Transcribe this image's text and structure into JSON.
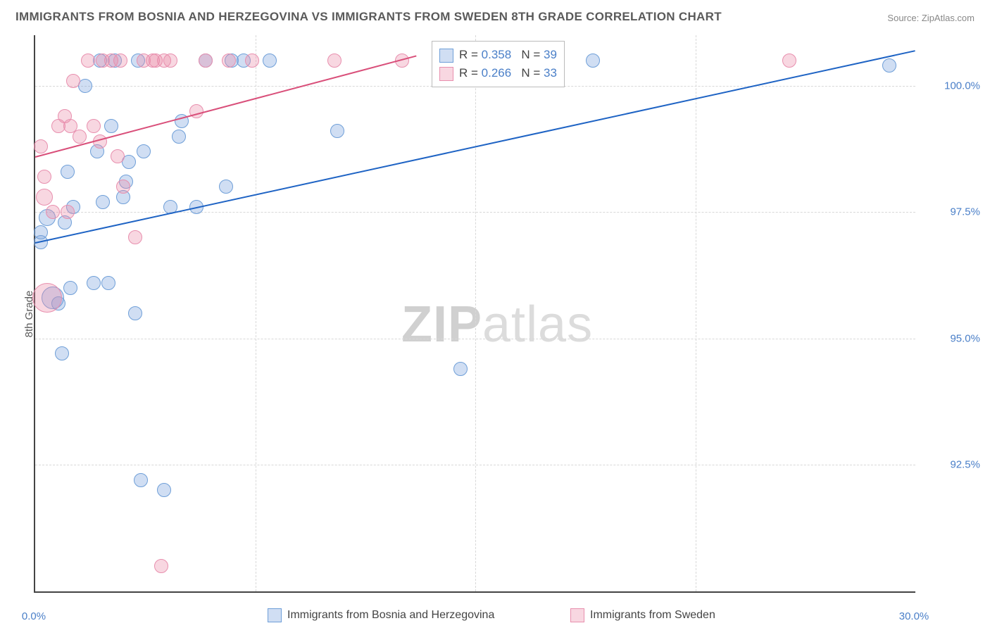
{
  "title": "IMMIGRANTS FROM BOSNIA AND HERZEGOVINA VS IMMIGRANTS FROM SWEDEN 8TH GRADE CORRELATION CHART",
  "source_label": "Source:",
  "source_value": "ZipAtlas.com",
  "ylabel": "8th Grade",
  "watermark_bold": "ZIP",
  "watermark_rest": "atlas",
  "chart": {
    "type": "scatter",
    "xlim": [
      0,
      30
    ],
    "ylim": [
      90,
      101
    ],
    "yticks": [
      {
        "v": 92.5,
        "label": "92.5%"
      },
      {
        "v": 95.0,
        "label": "95.0%"
      },
      {
        "v": 97.5,
        "label": "97.5%"
      },
      {
        "v": 100.0,
        "label": "100.0%"
      }
    ],
    "xticks": [
      {
        "v": 0,
        "label": "0.0%"
      },
      {
        "v": 30,
        "label": "30.0%"
      }
    ],
    "grid_v": [
      7.5,
      15,
      22.5
    ],
    "grid_color": "#d8d8d8",
    "background_color": "#ffffff",
    "marker_radius": 10,
    "marker_stroke": 1.5,
    "series": [
      {
        "name": "Immigrants from Bosnia and Herzegovina",
        "fill": "rgba(120,160,220,0.35)",
        "stroke": "#6f9fd8",
        "r_label": "R =",
        "r": "0.358",
        "n_label": "N =",
        "n": "39",
        "line_color": "#1e63c4",
        "line_from": {
          "x": 0,
          "y": 96.9
        },
        "line_to": {
          "x": 30,
          "y": 100.7
        },
        "points": [
          {
            "x": 0.2,
            "y": 96.9
          },
          {
            "x": 0.2,
            "y": 97.1
          },
          {
            "x": 0.4,
            "y": 97.4,
            "r": 12
          },
          {
            "x": 0.6,
            "y": 95.8,
            "r": 16
          },
          {
            "x": 0.8,
            "y": 95.7
          },
          {
            "x": 0.9,
            "y": 94.7
          },
          {
            "x": 1.0,
            "y": 97.3
          },
          {
            "x": 1.1,
            "y": 98.3
          },
          {
            "x": 1.2,
            "y": 96.0
          },
          {
            "x": 1.3,
            "y": 97.6
          },
          {
            "x": 1.7,
            "y": 100.0
          },
          {
            "x": 2.0,
            "y": 96.1
          },
          {
            "x": 2.1,
            "y": 98.7
          },
          {
            "x": 2.2,
            "y": 100.5
          },
          {
            "x": 2.3,
            "y": 97.7
          },
          {
            "x": 2.5,
            "y": 96.1
          },
          {
            "x": 2.6,
            "y": 99.2
          },
          {
            "x": 2.7,
            "y": 100.5
          },
          {
            "x": 3.0,
            "y": 97.8
          },
          {
            "x": 3.1,
            "y": 98.1
          },
          {
            "x": 3.2,
            "y": 98.5
          },
          {
            "x": 3.4,
            "y": 95.5
          },
          {
            "x": 3.5,
            "y": 100.5
          },
          {
            "x": 3.6,
            "y": 92.2
          },
          {
            "x": 3.7,
            "y": 98.7
          },
          {
            "x": 4.4,
            "y": 92.0
          },
          {
            "x": 4.6,
            "y": 97.6
          },
          {
            "x": 4.9,
            "y": 99.0
          },
          {
            "x": 5.0,
            "y": 99.3
          },
          {
            "x": 5.5,
            "y": 97.6
          },
          {
            "x": 5.8,
            "y": 100.5
          },
          {
            "x": 6.5,
            "y": 98.0
          },
          {
            "x": 6.7,
            "y": 100.5
          },
          {
            "x": 7.1,
            "y": 100.5
          },
          {
            "x": 8.0,
            "y": 100.5
          },
          {
            "x": 10.3,
            "y": 99.1
          },
          {
            "x": 14.5,
            "y": 94.4
          },
          {
            "x": 19.0,
            "y": 100.5
          },
          {
            "x": 29.1,
            "y": 100.4
          }
        ]
      },
      {
        "name": "Immigrants from Sweden",
        "fill": "rgba(235,140,170,0.35)",
        "stroke": "#e88fae",
        "r_label": "R =",
        "r": "0.266",
        "n_label": "N =",
        "n": "33",
        "line_color": "#d94f7a",
        "line_from": {
          "x": 0,
          "y": 98.6
        },
        "line_to": {
          "x": 13,
          "y": 100.6
        },
        "points": [
          {
            "x": 0.2,
            "y": 98.8
          },
          {
            "x": 0.3,
            "y": 98.2
          },
          {
            "x": 0.3,
            "y": 97.8,
            "r": 12
          },
          {
            "x": 0.4,
            "y": 95.8,
            "r": 21
          },
          {
            "x": 0.6,
            "y": 97.5
          },
          {
            "x": 0.8,
            "y": 99.2
          },
          {
            "x": 1.0,
            "y": 99.4
          },
          {
            "x": 1.1,
            "y": 97.5
          },
          {
            "x": 1.2,
            "y": 99.2
          },
          {
            "x": 1.3,
            "y": 100.1
          },
          {
            "x": 1.5,
            "y": 99.0
          },
          {
            "x": 1.8,
            "y": 100.5
          },
          {
            "x": 2.0,
            "y": 99.2
          },
          {
            "x": 2.2,
            "y": 98.9
          },
          {
            "x": 2.3,
            "y": 100.5
          },
          {
            "x": 2.6,
            "y": 100.5
          },
          {
            "x": 2.8,
            "y": 98.6
          },
          {
            "x": 2.9,
            "y": 100.5
          },
          {
            "x": 3.0,
            "y": 98.0
          },
          {
            "x": 3.4,
            "y": 97.0
          },
          {
            "x": 3.7,
            "y": 100.5
          },
          {
            "x": 4.0,
            "y": 100.5
          },
          {
            "x": 4.1,
            "y": 100.5
          },
          {
            "x": 4.3,
            "y": 90.5
          },
          {
            "x": 4.4,
            "y": 100.5
          },
          {
            "x": 4.6,
            "y": 100.5
          },
          {
            "x": 5.5,
            "y": 99.5
          },
          {
            "x": 5.8,
            "y": 100.5
          },
          {
            "x": 6.6,
            "y": 100.5
          },
          {
            "x": 7.4,
            "y": 100.5
          },
          {
            "x": 10.2,
            "y": 100.5
          },
          {
            "x": 12.5,
            "y": 100.5
          },
          {
            "x": 25.7,
            "y": 100.5
          }
        ]
      }
    ]
  }
}
